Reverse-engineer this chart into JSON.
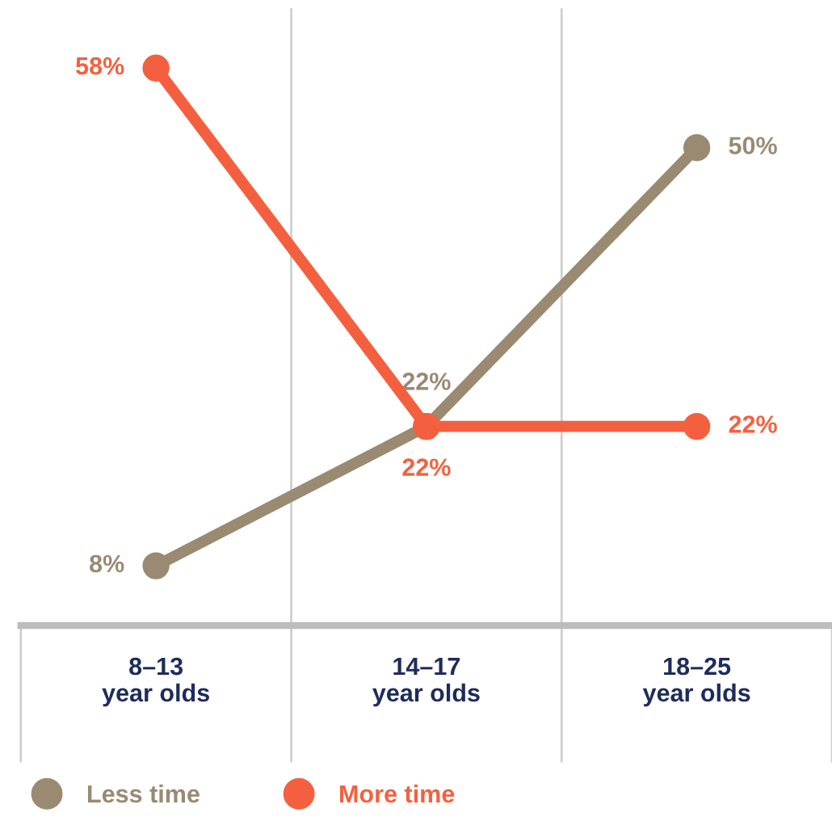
{
  "chart_data": {
    "type": "line",
    "categories": [
      "8–13\nyear olds",
      "14–17\nyear olds",
      "18–25\nyear olds"
    ],
    "series": [
      {
        "name": "Less time",
        "color": "#9a8a72",
        "values": [
          8,
          22,
          50
        ],
        "value_labels": [
          "8%",
          "22%",
          "50%"
        ]
      },
      {
        "name": "More time",
        "color": "#f4603f",
        "values": [
          58,
          22,
          22
        ],
        "value_labels": [
          "58%",
          "22%",
          "22%"
        ]
      }
    ],
    "marker": "circle",
    "line_style": "solid",
    "grid": "x",
    "legend": "bottom left"
  }
}
